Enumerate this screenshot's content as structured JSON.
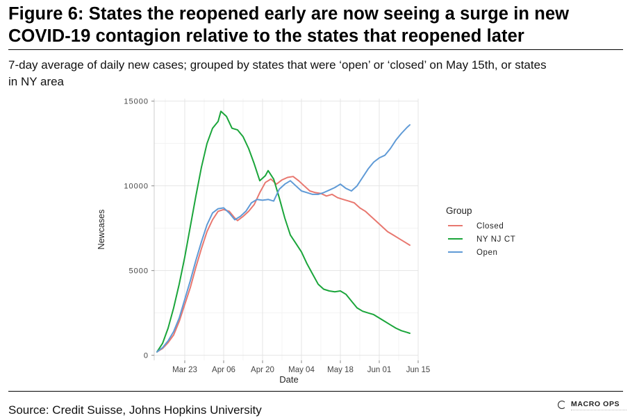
{
  "figure": {
    "title_line1": "Figure 6: States the reopened early are now seeing a surge in new",
    "title_line2": "COVID-19 contagion relative to the states that reopened later",
    "subtitle_line1": "7-day average of daily new cases; grouped by states that were ‘open’ or ‘closed’ on May 15th, or states",
    "subtitle_line2": "in NY area",
    "source": "Source: Credit Suisse, Johns Hopkins University",
    "logo_text": "MACRO OPS"
  },
  "chart_data": {
    "type": "line",
    "xlabel": "Date",
    "ylabel": "Newcases",
    "x_tick_labels": [
      "Mar 23",
      "Apr 06",
      "Apr 20",
      "May 04",
      "May 18",
      "Jun 01",
      "Jun 15"
    ],
    "x_tick_days": [
      23,
      37,
      51,
      65,
      79,
      93,
      107
    ],
    "y_ticks": [
      0,
      5000,
      10000,
      15000
    ],
    "y_tick_labels": [
      "0",
      "5000",
      "10000",
      "15000"
    ],
    "xlim": [
      12,
      107
    ],
    "ylim": [
      -300,
      15150
    ],
    "grid": true,
    "legend": {
      "title": "Group",
      "position": "right"
    },
    "x_unit_note": "x values are days counted from Mar 1 (day 1 = Mar 1)",
    "series": [
      {
        "name": "Closed",
        "color": "#e8776f",
        "points": [
          [
            13,
            200
          ],
          [
            15,
            400
          ],
          [
            17,
            750
          ],
          [
            19,
            1200
          ],
          [
            21,
            2000
          ],
          [
            23,
            3000
          ],
          [
            25,
            4000
          ],
          [
            27,
            5200
          ],
          [
            29,
            6300
          ],
          [
            31,
            7300
          ],
          [
            33,
            8000
          ],
          [
            35,
            8500
          ],
          [
            37,
            8600
          ],
          [
            39,
            8500
          ],
          [
            41,
            8100
          ],
          [
            42,
            7950
          ],
          [
            44,
            8200
          ],
          [
            46,
            8500
          ],
          [
            48,
            8900
          ],
          [
            50,
            9600
          ],
          [
            52,
            10200
          ],
          [
            54,
            10400
          ],
          [
            56,
            10100
          ],
          [
            58,
            10350
          ],
          [
            60,
            10500
          ],
          [
            62,
            10550
          ],
          [
            64,
            10300
          ],
          [
            66,
            10000
          ],
          [
            68,
            9700
          ],
          [
            70,
            9600
          ],
          [
            72,
            9550
          ],
          [
            74,
            9400
          ],
          [
            76,
            9500
          ],
          [
            78,
            9300
          ],
          [
            80,
            9200
          ],
          [
            82,
            9100
          ],
          [
            84,
            9000
          ],
          [
            86,
            8700
          ],
          [
            88,
            8500
          ],
          [
            90,
            8200
          ],
          [
            92,
            7900
          ],
          [
            94,
            7600
          ],
          [
            96,
            7300
          ],
          [
            98,
            7100
          ],
          [
            100,
            6900
          ],
          [
            102,
            6700
          ],
          [
            104,
            6500
          ]
        ]
      },
      {
        "name": "NY NJ CT",
        "color": "#1aa53a",
        "points": [
          [
            13,
            200
          ],
          [
            15,
            700
          ],
          [
            17,
            1600
          ],
          [
            19,
            2800
          ],
          [
            21,
            4200
          ],
          [
            23,
            5800
          ],
          [
            25,
            7600
          ],
          [
            27,
            9400
          ],
          [
            29,
            11100
          ],
          [
            31,
            12500
          ],
          [
            33,
            13400
          ],
          [
            35,
            13800
          ],
          [
            36,
            14400
          ],
          [
            38,
            14100
          ],
          [
            40,
            13400
          ],
          [
            42,
            13300
          ],
          [
            44,
            12900
          ],
          [
            46,
            12200
          ],
          [
            48,
            11300
          ],
          [
            50,
            10300
          ],
          [
            52,
            10600
          ],
          [
            53,
            10900
          ],
          [
            55,
            10400
          ],
          [
            57,
            9300
          ],
          [
            59,
            8100
          ],
          [
            61,
            7100
          ],
          [
            63,
            6600
          ],
          [
            65,
            6100
          ],
          [
            67,
            5400
          ],
          [
            69,
            4800
          ],
          [
            71,
            4200
          ],
          [
            73,
            3900
          ],
          [
            75,
            3800
          ],
          [
            77,
            3750
          ],
          [
            79,
            3800
          ],
          [
            81,
            3600
          ],
          [
            83,
            3200
          ],
          [
            85,
            2800
          ],
          [
            87,
            2600
          ],
          [
            89,
            2500
          ],
          [
            91,
            2400
          ],
          [
            93,
            2200
          ],
          [
            95,
            2000
          ],
          [
            97,
            1800
          ],
          [
            99,
            1600
          ],
          [
            101,
            1450
          ],
          [
            103,
            1350
          ],
          [
            104,
            1300
          ]
        ]
      },
      {
        "name": "Open",
        "color": "#5f9ad6",
        "points": [
          [
            13,
            200
          ],
          [
            15,
            450
          ],
          [
            17,
            850
          ],
          [
            19,
            1400
          ],
          [
            21,
            2200
          ],
          [
            23,
            3300
          ],
          [
            25,
            4400
          ],
          [
            27,
            5600
          ],
          [
            29,
            6700
          ],
          [
            31,
            7700
          ],
          [
            33,
            8400
          ],
          [
            35,
            8650
          ],
          [
            37,
            8700
          ],
          [
            39,
            8400
          ],
          [
            41,
            8000
          ],
          [
            43,
            8200
          ],
          [
            45,
            8500
          ],
          [
            47,
            9000
          ],
          [
            49,
            9200
          ],
          [
            51,
            9150
          ],
          [
            53,
            9200
          ],
          [
            55,
            9100
          ],
          [
            57,
            9800
          ],
          [
            59,
            10100
          ],
          [
            61,
            10300
          ],
          [
            63,
            10000
          ],
          [
            65,
            9700
          ],
          [
            67,
            9600
          ],
          [
            69,
            9500
          ],
          [
            71,
            9500
          ],
          [
            73,
            9600
          ],
          [
            75,
            9750
          ],
          [
            77,
            9900
          ],
          [
            79,
            10100
          ],
          [
            81,
            9850
          ],
          [
            83,
            9700
          ],
          [
            85,
            10000
          ],
          [
            87,
            10500
          ],
          [
            89,
            11000
          ],
          [
            91,
            11400
          ],
          [
            93,
            11650
          ],
          [
            95,
            11800
          ],
          [
            97,
            12200
          ],
          [
            99,
            12700
          ],
          [
            101,
            13100
          ],
          [
            103,
            13450
          ],
          [
            104,
            13600
          ]
        ]
      }
    ]
  }
}
